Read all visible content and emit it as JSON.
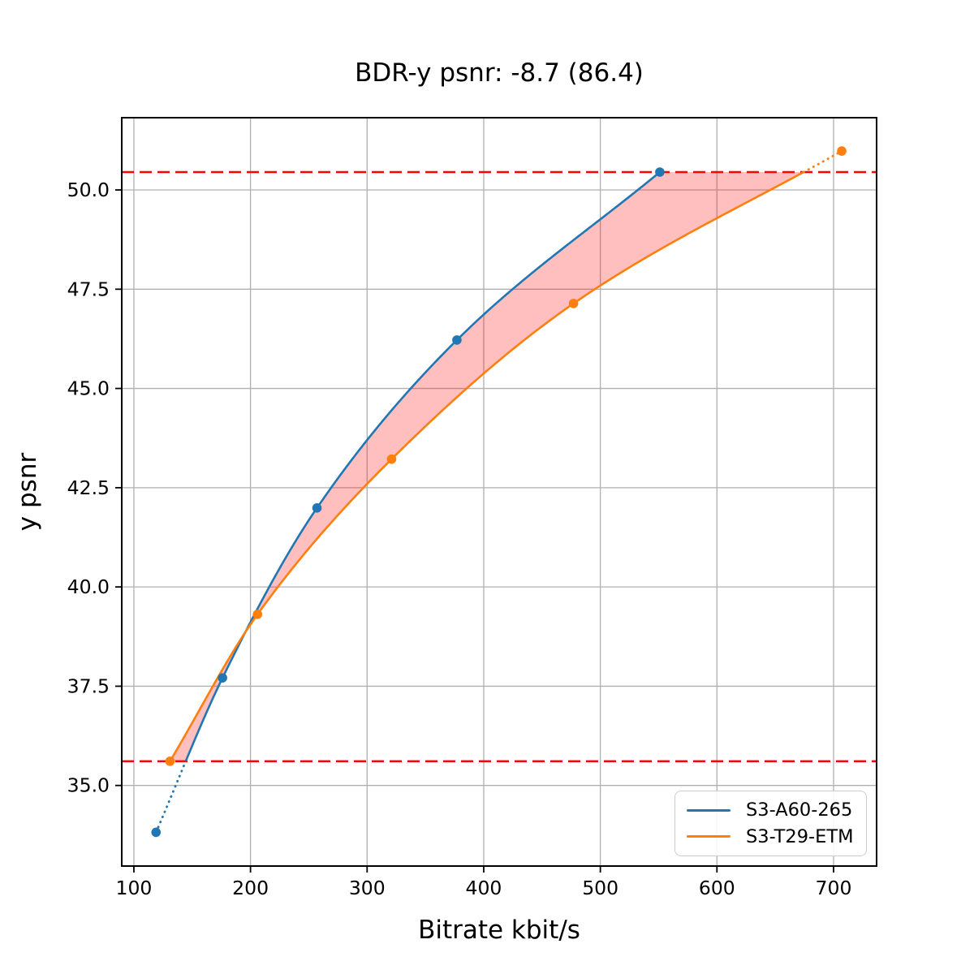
{
  "chart_data": {
    "type": "line",
    "title": "BDR-y psnr: -8.7 (86.4)",
    "bd_rate": -8.7,
    "overlap_percent": 86.4,
    "xlabel": "Bitrate kbit/s",
    "ylabel": "y psnr",
    "xlim": [
      89.6,
      736.9
    ],
    "ylim": [
      32.97,
      51.82
    ],
    "x_ticks": [
      100,
      200,
      300,
      400,
      500,
      600,
      700
    ],
    "y_ticks": [
      35.0,
      37.5,
      40.0,
      42.5,
      45.0,
      47.5,
      50.0
    ],
    "grid": true,
    "grid_color": "#b0b0b0",
    "legend_position": "lower right",
    "series": [
      {
        "name": "S3-A60-265",
        "color": "#1f77b4",
        "points": [
          [
            119,
            33.82
          ],
          [
            176,
            37.71
          ],
          [
            257,
            41.99
          ],
          [
            377,
            46.22
          ],
          [
            551,
            50.45
          ]
        ]
      },
      {
        "name": "S3-T29-ETM",
        "color": "#ff7f0e",
        "points": [
          [
            131,
            35.61
          ],
          [
            206,
            39.31
          ],
          [
            321,
            43.22
          ],
          [
            477,
            47.14
          ],
          [
            707,
            50.98
          ]
        ]
      }
    ],
    "ref_lines": {
      "color": "#ff0000",
      "style": "dashed",
      "y_values": [
        35.61,
        50.45
      ]
    },
    "fill_between": {
      "color": "#ff0000",
      "opacity": 0.25,
      "band": [
        35.61,
        50.45
      ]
    }
  }
}
